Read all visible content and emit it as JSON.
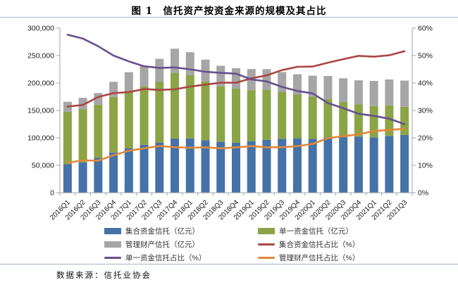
{
  "figure": {
    "title": "图 1　信托资产按资金来源的规模及其占比",
    "source_note": "数据来源：信托业协会",
    "rule_color": "#A6B7CE",
    "background": "#FFFFFF"
  },
  "chart_data": {
    "type": "bar",
    "subtype": "stacked-bars-with-percentage-lines",
    "categories": [
      "2016Q1",
      "2016Q2",
      "2016Q3",
      "2016Q4",
      "2017Q1",
      "2017Q2",
      "2017Q3",
      "2017Q4",
      "2018Q1",
      "2018Q2",
      "2018Q3",
      "2018Q4",
      "2019Q1",
      "2019Q2",
      "2019Q3",
      "2019Q4",
      "2020Q1",
      "2020Q2",
      "2020Q3",
      "2020Q4",
      "2021Q1",
      "2021Q2",
      "2021Q3"
    ],
    "bar_series": [
      {
        "name": "集合资金信托（亿元）",
        "color": "#4572A7",
        "axis": "left",
        "values": [
          52000,
          55300,
          63500,
          73400,
          80700,
          87400,
          91500,
          98900,
          99000,
          95600,
          92800,
          91100,
          94000,
          96500,
          98400,
          99200,
          98100,
          100900,
          101500,
          102300,
          101000,
          103400,
          105500
        ]
      },
      {
        "name": "单一资金信托（亿元）",
        "color": "#8BA446",
        "axis": "left",
        "values": [
          95500,
          97200,
          97000,
          101200,
          105300,
          106600,
          111000,
          120000,
          115200,
          107000,
          101200,
          98500,
          93000,
          91500,
          84900,
          80100,
          77300,
          69600,
          64200,
          59000,
          57000,
          55800,
          51200
        ]
      },
      {
        "name": "管理财产信托（亿元）",
        "color": "#A6A6A6",
        "axis": "left",
        "values": [
          18300,
          20400,
          21200,
          27600,
          33700,
          37400,
          41600,
          43600,
          41900,
          40100,
          37400,
          37400,
          38400,
          37300,
          36600,
          36700,
          37900,
          42300,
          42900,
          43600,
          45800,
          47200,
          47700
        ]
      }
    ],
    "line_series": [
      {
        "name": "集合资金信托占比（%）",
        "color": "#AA4643",
        "axis": "right",
        "values": [
          31.4,
          32.0,
          34.9,
          36.3,
          36.7,
          37.8,
          37.5,
          37.7,
          38.7,
          39.4,
          40.1,
          40.1,
          41.7,
          42.8,
          44.7,
          45.9,
          46.0,
          47.4,
          48.7,
          49.9,
          49.6,
          50.1,
          51.6
        ]
      },
      {
        "name": "单一资金信托占比（%）",
        "color": "#66508E",
        "axis": "right",
        "values": [
          57.6,
          56.2,
          53.4,
          50.0,
          47.9,
          46.1,
          45.5,
          45.7,
          45.0,
          44.1,
          43.7,
          43.4,
          41.3,
          40.6,
          38.6,
          37.1,
          36.2,
          32.7,
          30.8,
          28.8,
          28.0,
          27.0,
          25.0
        ]
      },
      {
        "name": "管理财产信托占比（%）",
        "color": "#E0883A",
        "axis": "right",
        "values": [
          11.0,
          11.8,
          11.7,
          13.7,
          15.3,
          16.2,
          17.0,
          16.6,
          16.4,
          16.5,
          16.2,
          16.5,
          17.0,
          16.6,
          16.6,
          17.0,
          17.8,
          19.9,
          20.6,
          21.3,
          22.5,
          22.9,
          23.3
        ]
      }
    ],
    "left_axis": {
      "min": 0,
      "max": 300000,
      "step": 50000,
      "tick_labels": [
        "0",
        "50,000",
        "100,000",
        "150,000",
        "200,000",
        "250,000",
        "300,000"
      ]
    },
    "right_axis": {
      "min": 0,
      "max": 60,
      "step": 10,
      "tick_labels": [
        "0%",
        "10%",
        "20%",
        "30%",
        "40%",
        "50%",
        "60%"
      ]
    },
    "grid": "off",
    "legend_position": "bottom",
    "legend": [
      {
        "label": "集合资金信托（亿元）",
        "swatch": "rect",
        "color": "#4572A7"
      },
      {
        "label": "单一资金信托（亿元）",
        "swatch": "rect",
        "color": "#8BA446"
      },
      {
        "label": "管理财产信托（亿元）",
        "swatch": "rect",
        "color": "#A6A6A6"
      },
      {
        "label": "集合资金信托占比（%）",
        "swatch": "line",
        "color": "#AA4643"
      },
      {
        "label": "单一资金信托占比（%）",
        "swatch": "line",
        "color": "#66508E"
      },
      {
        "label": "管理财产信托占比（%）",
        "swatch": "line",
        "color": "#E0883A"
      }
    ],
    "axis_color": "#A3A3A3",
    "tick_text_color": "#1A1A1A"
  }
}
